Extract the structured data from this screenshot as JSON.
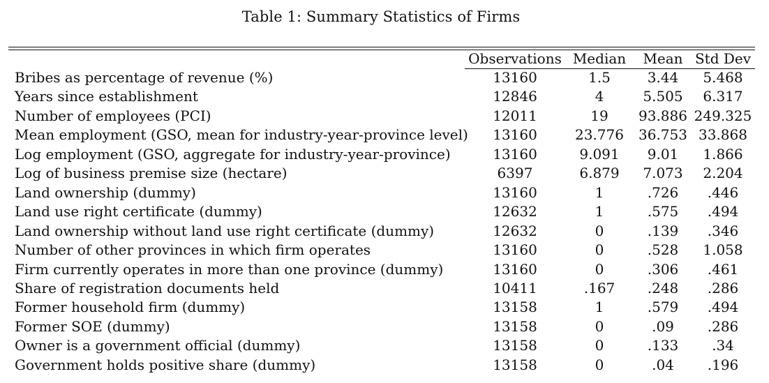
{
  "table": {
    "caption": "Table 1: Summary Statistics of Firms",
    "columns": [
      "Observations",
      "Median",
      "Mean",
      "Std Dev"
    ],
    "rows": [
      {
        "label": "Bribes as percentage of revenue (%)",
        "observations": "13160",
        "median": "1.5",
        "mean": "3.44",
        "std_dev": "5.468"
      },
      {
        "label": "Years since establishment",
        "observations": "12846",
        "median": "4",
        "mean": "5.505",
        "std_dev": "6.317"
      },
      {
        "label": "Number of employees (PCI)",
        "observations": "12011",
        "median": "19",
        "mean": "93.886",
        "std_dev": "249.325"
      },
      {
        "label": "Mean employment (GSO, mean for industry-year-province level)",
        "observations": "13160",
        "median": "23.776",
        "mean": "36.753",
        "std_dev": "33.868"
      },
      {
        "label": "Log employment (GSO, aggregate for industry-year-province)",
        "observations": "13160",
        "median": "9.091",
        "mean": "9.01",
        "std_dev": "1.866"
      },
      {
        "label": "Log of business premise size (hectare)",
        "observations": "6397",
        "median": "6.879",
        "mean": "7.073",
        "std_dev": "2.204"
      },
      {
        "label": "Land ownership (dummy)",
        "observations": "13160",
        "median": "1",
        "mean": ".726",
        "std_dev": ".446"
      },
      {
        "label": "Land use right certificate (dummy)",
        "observations": "12632",
        "median": "1",
        "mean": ".575",
        "std_dev": ".494"
      },
      {
        "label": "Land ownership without land use right certificate (dummy)",
        "observations": "12632",
        "median": "0",
        "mean": ".139",
        "std_dev": ".346"
      },
      {
        "label": "Number of other provinces in which firm operates",
        "observations": "13160",
        "median": "0",
        "mean": ".528",
        "std_dev": "1.058"
      },
      {
        "label": "Firm currently operates in more than one province (dummy)",
        "observations": "13160",
        "median": "0",
        "mean": ".306",
        "std_dev": ".461"
      },
      {
        "label": "Share of registration documents held",
        "observations": "10411",
        "median": ".167",
        "mean": ".248",
        "std_dev": ".286"
      },
      {
        "label": "Former household firm (dummy)",
        "observations": "13158",
        "median": "1",
        "mean": ".579",
        "std_dev": ".494"
      },
      {
        "label": "Former SOE (dummy)",
        "observations": "13158",
        "median": "0",
        "mean": ".09",
        "std_dev": ".286"
      },
      {
        "label": "Owner is a government official (dummy)",
        "observations": "13158",
        "median": "0",
        "mean": ".133",
        "std_dev": ".34"
      },
      {
        "label": "Government holds positive share (dummy)",
        "observations": "13158",
        "median": "0",
        "mean": ".04",
        "std_dev": ".196"
      }
    ]
  }
}
